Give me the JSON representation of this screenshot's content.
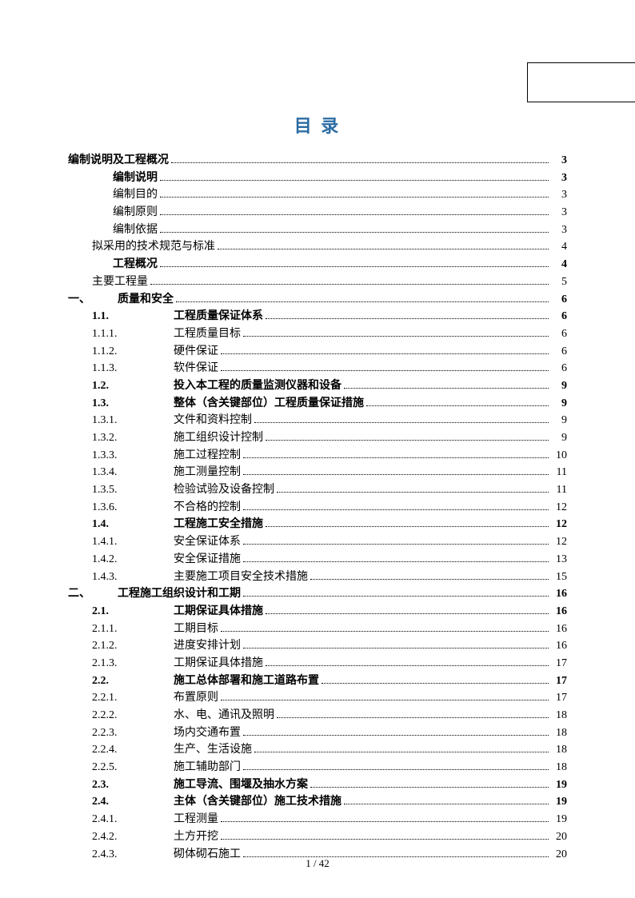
{
  "title": "目 录",
  "title_color": "#2b6ca3",
  "page_footer": "1 / 42",
  "text_color": "#000000",
  "background_color": "#ffffff",
  "font_family": "SimSun",
  "base_fontsize": 14,
  "title_fontsize": 22,
  "toc": [
    {
      "label": "",
      "text": "编制说明及工程概况",
      "page": "3",
      "bold": true,
      "indent": 0,
      "gap": 0
    },
    {
      "label": "",
      "text": "编制说明",
      "page": "3",
      "bold": true,
      "indent": 1,
      "gap": 26
    },
    {
      "label": "",
      "text": "编制目的",
      "page": "3",
      "bold": false,
      "indent": 1,
      "gap": 26
    },
    {
      "label": "",
      "text": "编制原则",
      "page": "3",
      "bold": false,
      "indent": 1,
      "gap": 26
    },
    {
      "label": "",
      "text": "编制依据",
      "page": "3",
      "bold": false,
      "indent": 1,
      "gap": 26
    },
    {
      "label": "",
      "text": "拟采用的技术规范与标准",
      "page": "4",
      "bold": false,
      "indent": 1,
      "gap": 0
    },
    {
      "label": "",
      "text": "工程概况",
      "page": "4",
      "bold": true,
      "indent": 1,
      "gap": 26
    },
    {
      "label": "",
      "text": "主要工程量",
      "page": "5",
      "bold": false,
      "indent": 1,
      "gap": 0
    },
    {
      "label": "一、",
      "text": "质量和安全",
      "page": "6",
      "bold": true,
      "indent": 0,
      "gap": 0
    },
    {
      "label": "1.1.",
      "text": "工程质量保证体系",
      "page": "6",
      "bold": true,
      "indent": 2,
      "gap": 40
    },
    {
      "label": "1.1.1.",
      "text": "工程质量目标",
      "page": "6",
      "bold": false,
      "indent": 2,
      "gap": 40
    },
    {
      "label": "1.1.2.",
      "text": "硬件保证",
      "page": "6",
      "bold": false,
      "indent": 2,
      "gap": 40
    },
    {
      "label": "1.1.3.",
      "text": "软件保证",
      "page": "6",
      "bold": false,
      "indent": 2,
      "gap": 40
    },
    {
      "label": "1.2.",
      "text": "投入本工程的质量监测仪器和设备",
      "page": "9",
      "bold": true,
      "indent": 2,
      "gap": 40
    },
    {
      "label": "1.3.",
      "text": "整体（含关键部位）工程质量保证措施",
      "page": "9",
      "bold": true,
      "indent": 2,
      "gap": 40
    },
    {
      "label": "1.3.1.",
      "text": "文件和资料控制",
      "page": "9",
      "bold": false,
      "indent": 2,
      "gap": 40
    },
    {
      "label": "1.3.2.",
      "text": "施工组织设计控制",
      "page": "9",
      "bold": false,
      "indent": 2,
      "gap": 40
    },
    {
      "label": "1.3.3.",
      "text": "施工过程控制",
      "page": "10",
      "bold": false,
      "indent": 2,
      "gap": 40
    },
    {
      "label": "1.3.4.",
      "text": "施工测量控制",
      "page": "11",
      "bold": false,
      "indent": 2,
      "gap": 40
    },
    {
      "label": "1.3.5.",
      "text": "检验试验及设备控制",
      "page": "11",
      "bold": false,
      "indent": 2,
      "gap": 40
    },
    {
      "label": "1.3.6.",
      "text": "不合格的控制",
      "page": "12",
      "bold": false,
      "indent": 2,
      "gap": 40
    },
    {
      "label": "1.4.",
      "text": "工程施工安全措施",
      "page": "12",
      "bold": true,
      "indent": 2,
      "gap": 40
    },
    {
      "label": "1.4.1.",
      "text": "安全保证体系",
      "page": "12",
      "bold": false,
      "indent": 2,
      "gap": 40
    },
    {
      "label": "1.4.2.",
      "text": "安全保证措施",
      "page": "13",
      "bold": false,
      "indent": 2,
      "gap": 40
    },
    {
      "label": "1.4.3.",
      "text": "主要施工项目安全技术措施",
      "page": "15",
      "bold": false,
      "indent": 2,
      "gap": 40
    },
    {
      "label": "二、",
      "text": "工程施工组织设计和工期",
      "page": "16",
      "bold": true,
      "indent": 0,
      "gap": 0
    },
    {
      "label": "2.1.",
      "text": "工期保证具体措施",
      "page": "16",
      "bold": true,
      "indent": 2,
      "gap": 40
    },
    {
      "label": "2.1.1.",
      "text": "工期目标",
      "page": "16",
      "bold": false,
      "indent": 2,
      "gap": 40
    },
    {
      "label": "2.1.2.",
      "text": "进度安排计划",
      "page": "16",
      "bold": false,
      "indent": 2,
      "gap": 40
    },
    {
      "label": "2.1.3.",
      "text": "工期保证具体措施",
      "page": "17",
      "bold": false,
      "indent": 2,
      "gap": 40
    },
    {
      "label": "2.2.",
      "text": "施工总体部署和施工道路布置",
      "page": "17",
      "bold": true,
      "indent": 2,
      "gap": 40
    },
    {
      "label": "2.2.1.",
      "text": "布置原则",
      "page": "17",
      "bold": false,
      "indent": 2,
      "gap": 40
    },
    {
      "label": "2.2.2.",
      "text": "水、电、通讯及照明",
      "page": "18",
      "bold": false,
      "indent": 2,
      "gap": 40
    },
    {
      "label": "2.2.3.",
      "text": "场内交通布置",
      "page": "18",
      "bold": false,
      "indent": 2,
      "gap": 40
    },
    {
      "label": "2.2.4.",
      "text": "生产、生活设施",
      "page": "18",
      "bold": false,
      "indent": 2,
      "gap": 40
    },
    {
      "label": "2.2.5.",
      "text": "施工辅助部门",
      "page": "18",
      "bold": false,
      "indent": 2,
      "gap": 40
    },
    {
      "label": "2.3.",
      "text": "施工导流、围堰及抽水方案",
      "page": "19",
      "bold": true,
      "indent": 2,
      "gap": 40
    },
    {
      "label": "2.4.",
      "text": "主体（含关键部位）施工技术措施",
      "page": "19",
      "bold": true,
      "indent": 2,
      "gap": 40
    },
    {
      "label": "2.4.1.",
      "text": "工程测量",
      "page": "19",
      "bold": false,
      "indent": 2,
      "gap": 40
    },
    {
      "label": "2.4.2.",
      "text": "土方开挖",
      "page": "20",
      "bold": false,
      "indent": 2,
      "gap": 40
    },
    {
      "label": "2.4.3.",
      "text": "砌体砌石施工",
      "page": "20",
      "bold": false,
      "indent": 2,
      "gap": 40
    }
  ]
}
